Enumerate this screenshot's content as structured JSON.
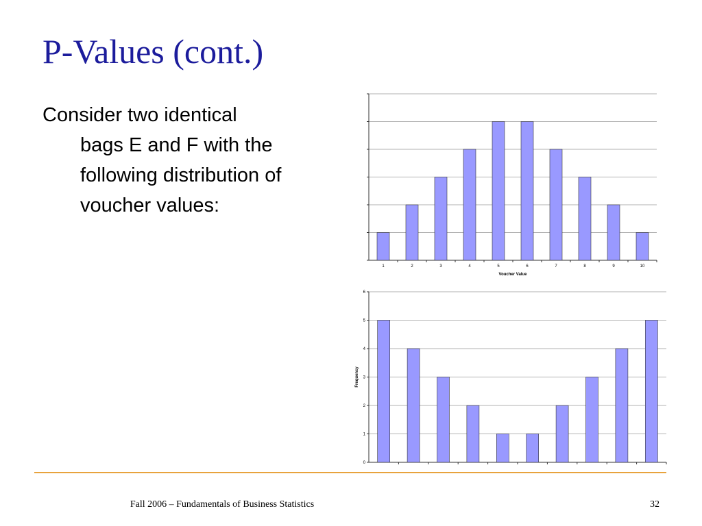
{
  "title": "P-Values (cont.)",
  "body": {
    "lines": [
      "Consider two identical",
      "bags E and F with the",
      "following distribution of",
      "voucher values:"
    ]
  },
  "footer": {
    "text": "Fall 2006 – Fundamentals of Business Statistics",
    "page_number": "32"
  },
  "chart_data": [
    {
      "type": "bar",
      "categories": [
        "1",
        "2",
        "3",
        "4",
        "5",
        "6",
        "7",
        "8",
        "9",
        "10"
      ],
      "values": [
        1,
        2,
        3,
        4,
        5,
        5,
        4,
        3,
        2,
        1
      ],
      "color": "#9999ff",
      "x_label": "Voucher Value",
      "ylim": [
        0,
        6
      ],
      "yticks": [
        0,
        1,
        2,
        3,
        4,
        5,
        6
      ],
      "ytick_labels": false,
      "grid": true
    },
    {
      "type": "bar",
      "categories": [
        null,
        null,
        null,
        null,
        null,
        null,
        null,
        null,
        null,
        null
      ],
      "values": [
        5,
        4,
        3,
        2,
        1,
        1,
        2,
        3,
        4,
        5
      ],
      "color": "#9999ff",
      "y_label": "Frequency",
      "ylim": [
        0,
        6
      ],
      "yticks": [
        0,
        1,
        2,
        3,
        4,
        5,
        6
      ],
      "ytick_labels": true,
      "grid": true
    }
  ]
}
